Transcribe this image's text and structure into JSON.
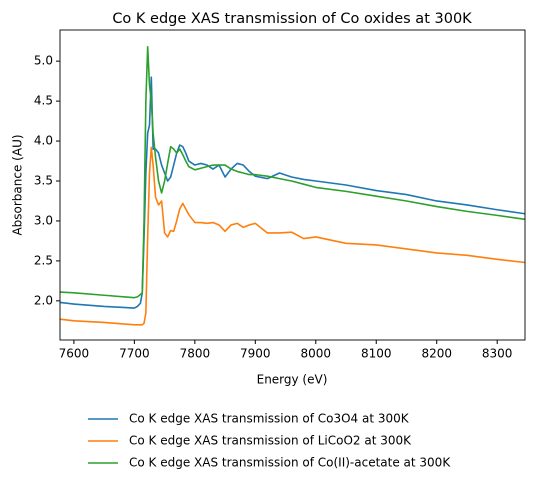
{
  "chart_data": {
    "type": "line",
    "title": "Co K edge XAS transmission of Co oxides at 300K",
    "x_label": "Energy (eV)",
    "y_label": "Absorbance (AU)",
    "x": [
      7577,
      7600,
      7650,
      7700,
      7705,
      7710,
      7713,
      7716,
      7719,
      7722,
      7725,
      7728,
      7731,
      7735,
      7740,
      7745,
      7750,
      7755,
      7760,
      7765,
      7770,
      7775,
      7780,
      7785,
      7790,
      7800,
      7810,
      7820,
      7830,
      7840,
      7850,
      7860,
      7870,
      7880,
      7890,
      7900,
      7920,
      7940,
      7960,
      7980,
      8000,
      8050,
      8100,
      8150,
      8200,
      8250,
      8300,
      8346
    ],
    "series": [
      {
        "name": "Co K edge XAS transmission of Co3O4 at 300K",
        "color": "#1f77b4",
        "values": [
          1.98,
          1.96,
          1.93,
          1.91,
          1.93,
          1.97,
          2.1,
          2.8,
          3.6,
          4.1,
          4.2,
          4.8,
          3.9,
          3.9,
          3.85,
          3.7,
          3.6,
          3.5,
          3.55,
          3.7,
          3.85,
          3.95,
          3.93,
          3.85,
          3.75,
          3.7,
          3.72,
          3.7,
          3.65,
          3.7,
          3.55,
          3.65,
          3.72,
          3.7,
          3.62,
          3.56,
          3.53,
          3.6,
          3.55,
          3.52,
          3.5,
          3.45,
          3.38,
          3.33,
          3.25,
          3.2,
          3.14,
          3.09
        ]
      },
      {
        "name": "Co K edge XAS transmission of LiCoO2 at 300K",
        "color": "#ff7f0e",
        "values": [
          1.77,
          1.75,
          1.73,
          1.7,
          1.7,
          1.7,
          1.7,
          1.72,
          1.85,
          2.8,
          3.6,
          3.92,
          3.7,
          3.3,
          3.2,
          3.25,
          2.85,
          2.8,
          2.88,
          2.87,
          3.0,
          3.15,
          3.22,
          3.15,
          3.08,
          2.98,
          2.98,
          2.97,
          2.98,
          2.95,
          2.87,
          2.95,
          2.97,
          2.92,
          2.95,
          2.97,
          2.85,
          2.85,
          2.86,
          2.78,
          2.8,
          2.72,
          2.7,
          2.65,
          2.6,
          2.57,
          2.52,
          2.48
        ]
      },
      {
        "name": "Co K edge XAS transmission of Co(II)-acetate at 300K",
        "color": "#2ca02c",
        "values": [
          2.11,
          2.1,
          2.07,
          2.04,
          2.05,
          2.08,
          2.1,
          3.0,
          4.5,
          5.18,
          4.7,
          4.5,
          4.1,
          3.8,
          3.5,
          3.35,
          3.5,
          3.72,
          3.93,
          3.9,
          3.85,
          3.9,
          3.83,
          3.75,
          3.68,
          3.64,
          3.66,
          3.68,
          3.7,
          3.7,
          3.7,
          3.65,
          3.62,
          3.6,
          3.58,
          3.58,
          3.56,
          3.53,
          3.5,
          3.46,
          3.42,
          3.37,
          3.31,
          3.25,
          3.18,
          3.12,
          3.07,
          3.02
        ]
      }
    ],
    "xlim": [
      7577,
      8346
    ],
    "ylim": [
      1.51,
      5.39
    ],
    "xticks": [
      7600,
      7700,
      7800,
      7900,
      8000,
      8100,
      8200,
      8300
    ],
    "yticks": [
      {
        "value": 2,
        "label": "2.0"
      },
      2.5,
      {
        "value": 3,
        "label": "3.0"
      },
      3.5,
      {
        "value": 4,
        "label": "4.0"
      },
      4.5,
      {
        "value": 5,
        "label": "5.0"
      }
    ],
    "grid": false,
    "legend": "bottom"
  }
}
